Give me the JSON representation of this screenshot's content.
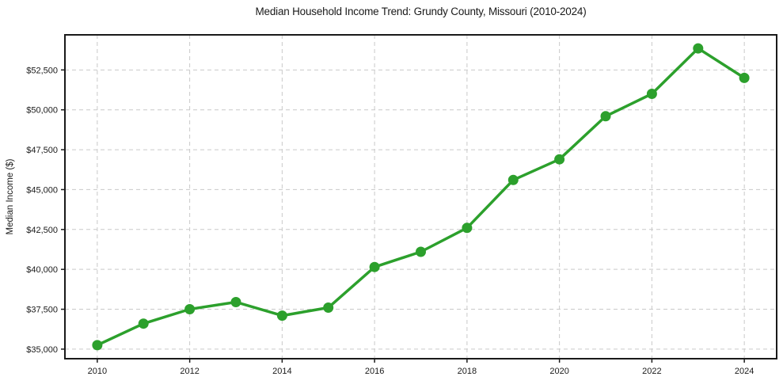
{
  "chart_data": {
    "type": "line",
    "title": "Median Household Income Trend: Grundy County, Missouri (2010-2024)",
    "xlabel": "",
    "ylabel": "Median Income ($)",
    "series": [
      {
        "name": "Median Household Income",
        "x": [
          2010,
          2011,
          2012,
          2013,
          2014,
          2015,
          2016,
          2017,
          2018,
          2019,
          2020,
          2021,
          2022,
          2023,
          2024
        ],
        "values": [
          35250,
          36600,
          37500,
          37950,
          37100,
          37600,
          40150,
          41100,
          42600,
          45600,
          46900,
          49600,
          51000,
          53850,
          52000
        ]
      }
    ],
    "xticks": [
      2010,
      2012,
      2014,
      2016,
      2018,
      2020,
      2022,
      2024
    ],
    "xtick_labels": [
      "2010",
      "2012",
      "2014",
      "2016",
      "2018",
      "2020",
      "2022",
      "2024"
    ],
    "yticks": [
      35000,
      37500,
      40000,
      42500,
      45000,
      47500,
      50000,
      52500
    ],
    "ytick_labels": [
      "$35,000",
      "$37,500",
      "$40,000",
      "$42,500",
      "$45,000",
      "$47,500",
      "$50,000",
      "$52,500"
    ],
    "xlim": [
      2009.3,
      2024.7
    ],
    "ylim": [
      34400,
      54700
    ],
    "grid": true,
    "grid_style": "dashed",
    "legend_position": "none",
    "line_color": "#2ca02c",
    "marker": "circle",
    "marker_color": "#2ca02c",
    "grid_color": "#c9c9c9",
    "axis_color": "#1a1a1a",
    "background_color": "#ffffff"
  }
}
